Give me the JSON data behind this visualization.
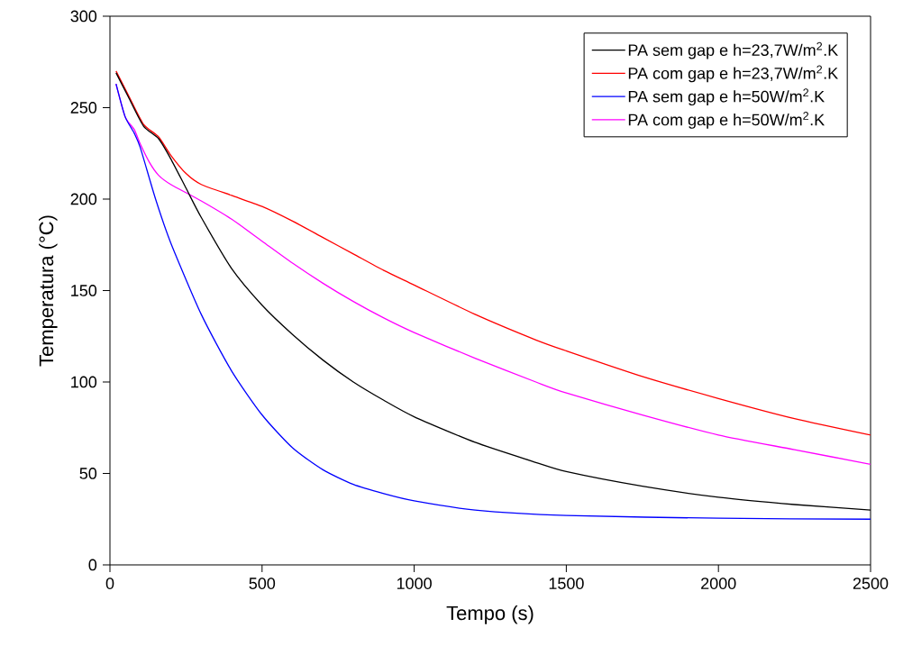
{
  "chart_data": {
    "type": "line",
    "xlabel": "Tempo (s)",
    "ylabel": "Temperatura (°C)",
    "xlim": [
      0,
      2500
    ],
    "ylim": [
      0,
      300
    ],
    "xticks": [
      0,
      500,
      1000,
      1500,
      2000,
      2500
    ],
    "yticks": [
      0,
      50,
      100,
      150,
      200,
      250,
      300
    ],
    "grid": false,
    "legend": "top right",
    "marker": "none",
    "line_style": "solid",
    "series": [
      {
        "name": "PA sem gap e h=23,7W/m$^{2}$.K",
        "color": "#000000",
        "x": [
          20,
          60,
          110,
          160,
          200,
          250,
          300,
          400,
          500,
          600,
          700,
          800,
          900,
          1000,
          1200,
          1400,
          1500,
          1750,
          2000,
          2250,
          2500
        ],
        "values": [
          269,
          256,
          240,
          233,
          222,
          206,
          190,
          162,
          142,
          126,
          112,
          100,
          90,
          81,
          67,
          56,
          51,
          43,
          37,
          33,
          30
        ]
      },
      {
        "name": "PA com gap e h=23,7W/m$^{2}$.K",
        "color": "#ff0000",
        "x": [
          20,
          60,
          110,
          160,
          200,
          250,
          300,
          400,
          500,
          600,
          700,
          800,
          900,
          1000,
          1200,
          1400,
          1500,
          1750,
          2000,
          2250,
          2500
        ],
        "values": [
          270,
          257,
          241,
          234,
          224,
          214,
          208,
          202,
          196,
          188,
          179,
          170,
          161,
          153,
          137,
          123,
          117,
          103,
          91,
          80,
          71
        ]
      },
      {
        "name": "PA sem gap e h=50W/m$^{2}$.K",
        "color": "#0000ff",
        "x": [
          20,
          50,
          80,
          100,
          150,
          200,
          300,
          400,
          500,
          600,
          700,
          800,
          900,
          1000,
          1200,
          1500,
          2000,
          2500
        ],
        "values": [
          263,
          245,
          236,
          228,
          200,
          176,
          137,
          106,
          82,
          64,
          52,
          44,
          39,
          35,
          30,
          27,
          25.5,
          25
        ]
      },
      {
        "name": "PA com gap e h=50W/m$^{2}$.K",
        "color": "#ff00ff",
        "x": [
          20,
          50,
          80,
          100,
          130,
          160,
          200,
          300,
          400,
          500,
          600,
          700,
          800,
          900,
          1000,
          1200,
          1400,
          1500,
          1750,
          2000,
          2250,
          2500
        ],
        "values": [
          263,
          245,
          238,
          230,
          220,
          213,
          208,
          199,
          189,
          177,
          165,
          154,
          144,
          135,
          127,
          113,
          100,
          94,
          82,
          71,
          63,
          55
        ]
      }
    ]
  }
}
